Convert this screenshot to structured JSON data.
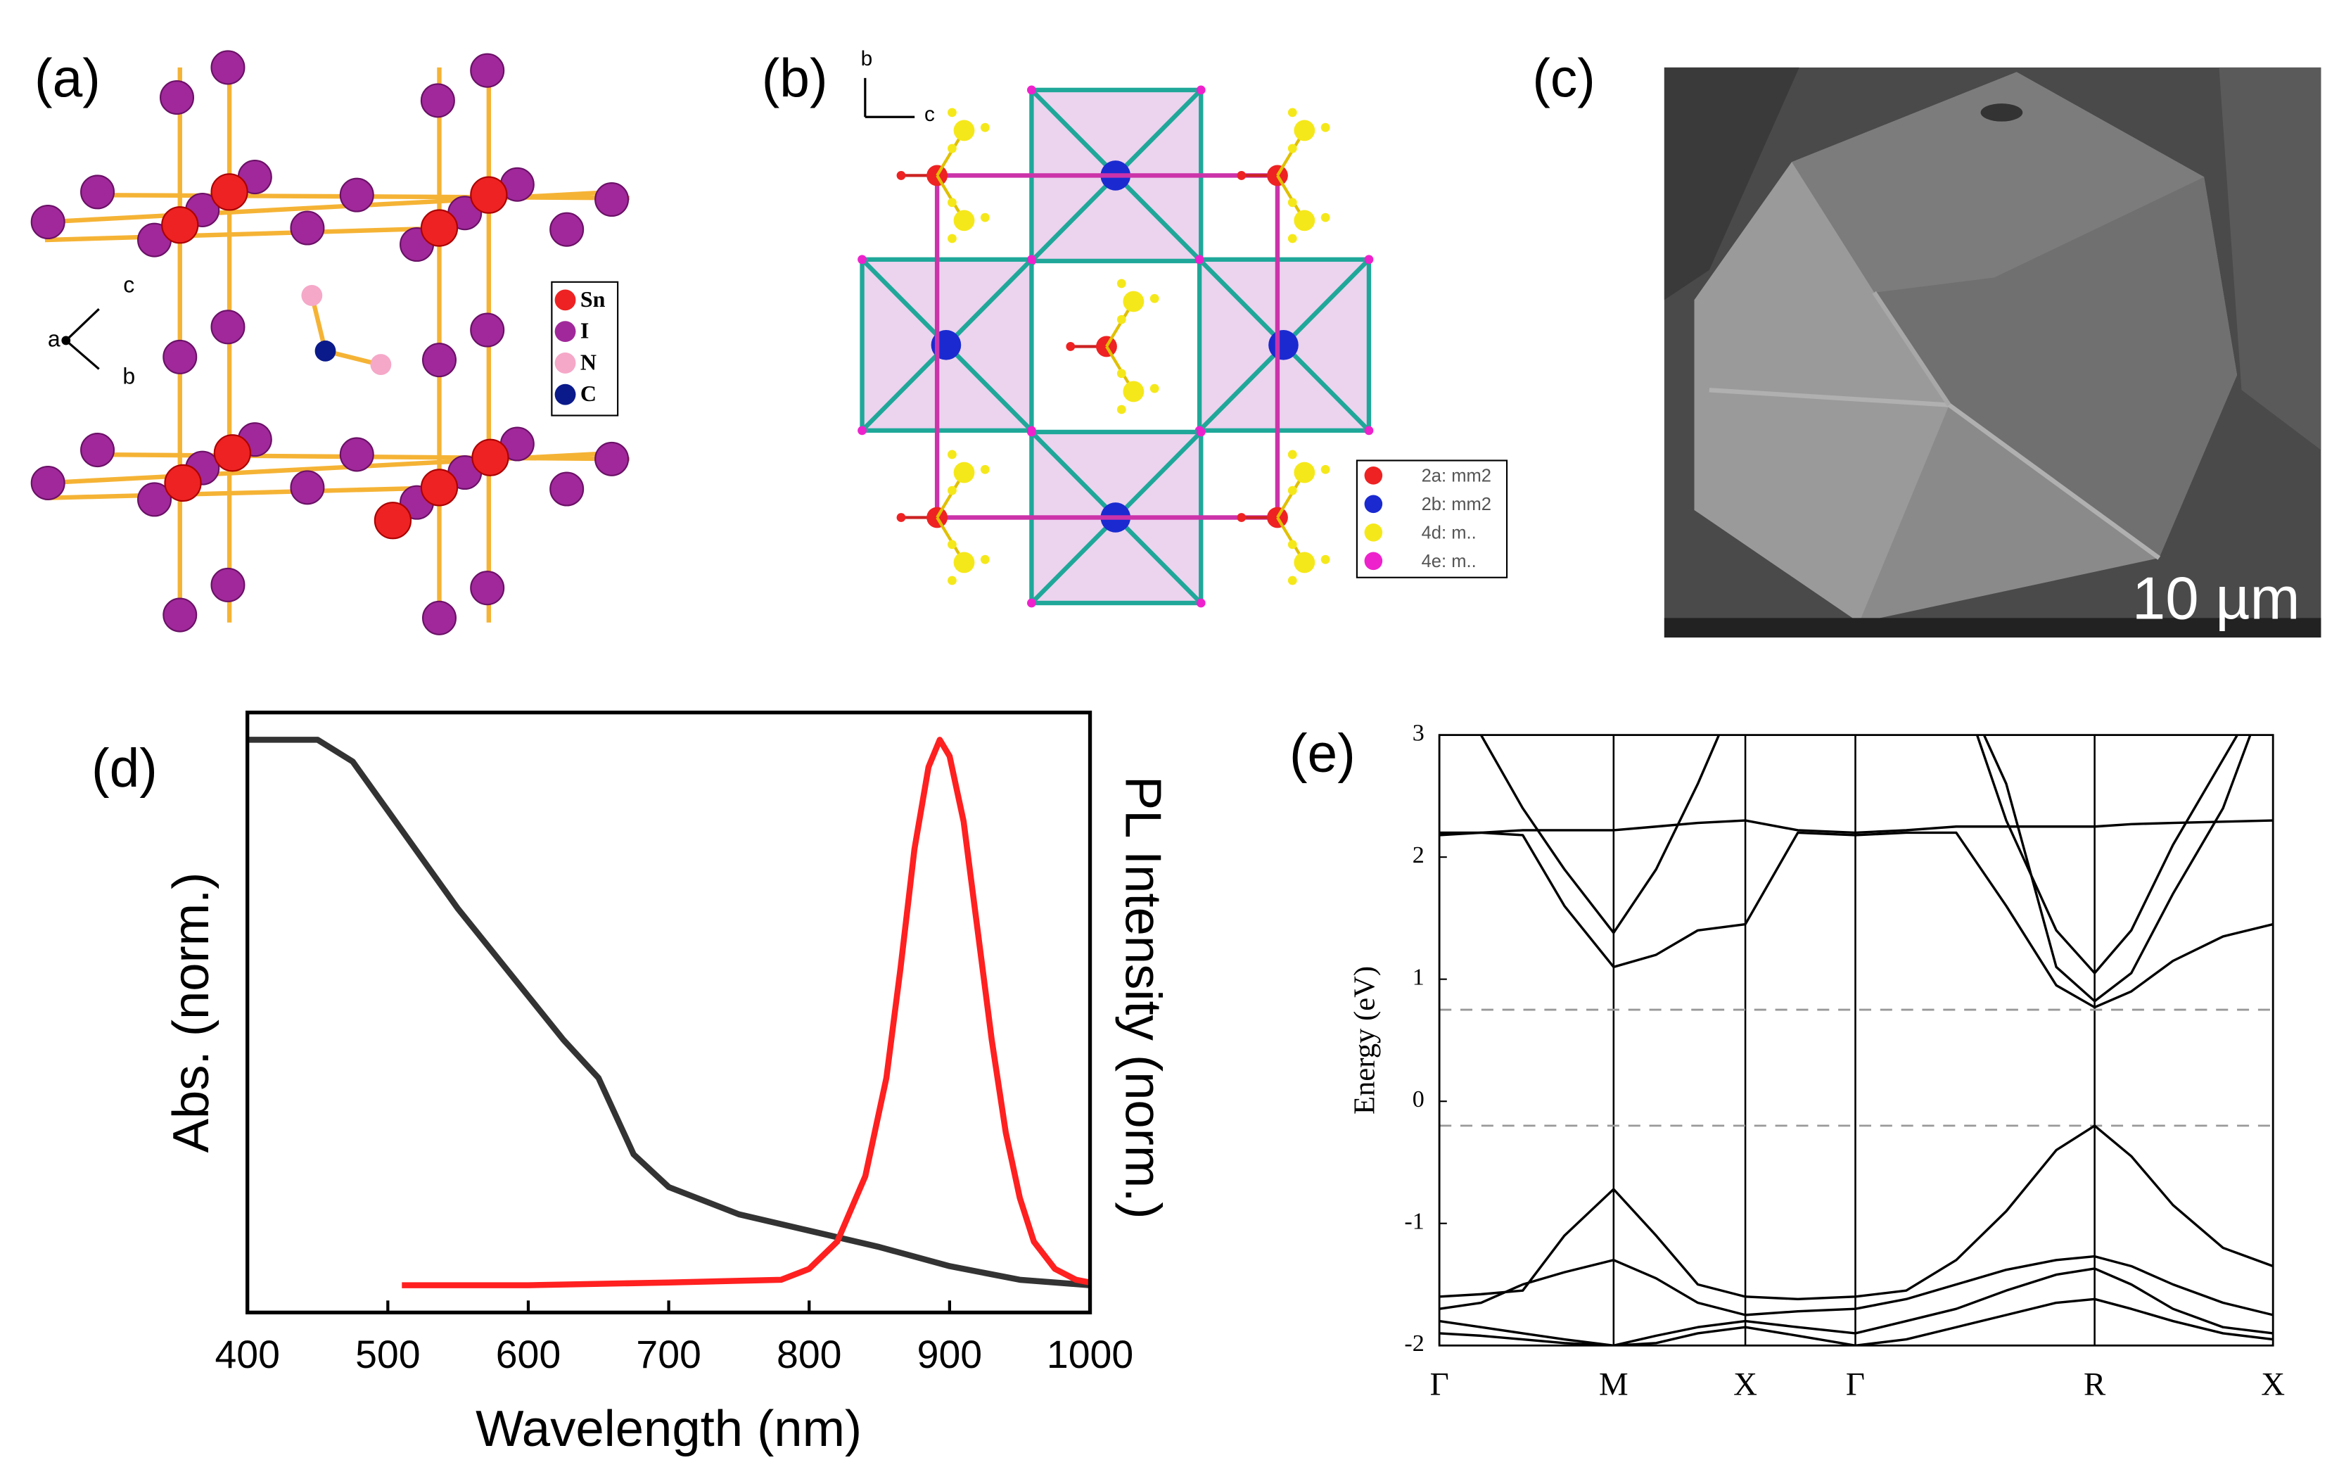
{
  "panels": [
    {
      "label": "(a)",
      "legend": [
        "Sn",
        "I",
        "N",
        "C"
      ],
      "axes": [
        "a",
        "b",
        "c"
      ]
    },
    {
      "label": "(b)",
      "legend": [
        "2a: mm2",
        "2b: mm2",
        "4d: m..",
        "4e: m.."
      ],
      "axes": [
        "b",
        "c"
      ]
    },
    {
      "label": "(c)",
      "scale_bar": "10 µm"
    },
    {
      "label": "(d)"
    },
    {
      "label": "(e)"
    }
  ],
  "chart_data": [
    {
      "type": "line",
      "xlabel": "Wavelength (nm)",
      "ylabel": "Abs. (norm.)",
      "ylabel_right": "PL Intensity (norm.)",
      "xlim": [
        400,
        1000
      ],
      "xticks": [
        400,
        500,
        600,
        700,
        800,
        900,
        1000
      ],
      "ylim": [
        -0.05,
        1.05
      ],
      "series": [
        {
          "color": "#333333",
          "x": [
            400,
            450,
            475,
            500,
            525,
            550,
            575,
            600,
            625,
            650,
            675,
            700,
            750,
            800,
            850,
            900,
            950,
            1000
          ],
          "values": [
            1,
            1,
            0.96,
            0.87,
            0.78,
            0.69,
            0.61,
            0.53,
            0.45,
            0.38,
            0.24,
            0.18,
            0.13,
            0.1,
            0.07,
            0.035,
            0.01,
            0
          ]
        },
        {
          "color": "#ff2020",
          "x": [
            510,
            600,
            700,
            780,
            800,
            820,
            840,
            855,
            865,
            875,
            885,
            893,
            900,
            910,
            920,
            930,
            940,
            950,
            960,
            975,
            990,
            1000
          ],
          "values": [
            0,
            0,
            0.005,
            0.01,
            0.03,
            0.08,
            0.2,
            0.38,
            0.58,
            0.8,
            0.95,
            1,
            0.97,
            0.85,
            0.65,
            0.45,
            0.28,
            0.16,
            0.08,
            0.03,
            0.01,
            0.005
          ]
        }
      ]
    },
    {
      "type": "line",
      "ylabel": "Energy (eV)",
      "xlim": [
        0,
        1
      ],
      "xticks": [
        {
          "value": 0,
          "label": "Γ"
        },
        {
          "value": 0.209,
          "label": "M"
        },
        {
          "value": 0.367,
          "label": "X"
        },
        {
          "value": 0.499,
          "label": "Γ"
        },
        {
          "value": 0.786,
          "label": "R"
        },
        {
          "value": 1,
          "label": "X"
        }
      ],
      "ylim": [
        -2,
        3
      ],
      "yticks": [
        -2,
        -1,
        0,
        1,
        2,
        3
      ],
      "grid_x": true,
      "reference_lines": [
        0.75,
        -0.2
      ],
      "x": [
        0,
        0.05,
        0.1,
        0.15,
        0.209,
        0.26,
        0.31,
        0.367,
        0.43,
        0.499,
        0.56,
        0.62,
        0.68,
        0.74,
        0.786,
        0.83,
        0.88,
        0.94,
        1
      ],
      "series": [
        {
          "color": "#000000",
          "values": [
            2.2,
            2.2,
            2.18,
            1.6,
            1.1,
            1.2,
            1.4,
            1.45,
            2.2,
            2.18,
            2.2,
            2.2,
            1.6,
            0.95,
            0.77,
            0.9,
            1.15,
            1.35,
            1.45
          ]
        },
        {
          "color": "#000000",
          "values": [
            3.5,
            3.0,
            2.4,
            1.9,
            1.38,
            1.9,
            2.6,
            3.5,
            3.5,
            3.5,
            3.5,
            3.5,
            2.3,
            1.4,
            1.05,
            1.4,
            2.1,
            2.8,
            3.5
          ]
        },
        {
          "color": "#000000",
          "values": [
            2.18,
            2.2,
            2.22,
            2.22,
            2.22,
            2.25,
            2.28,
            2.3,
            2.22,
            2.2,
            2.22,
            2.25,
            2.25,
            2.25,
            2.25,
            2.27,
            2.28,
            2.29,
            2.3
          ]
        },
        {
          "color": "#000000",
          "values": [
            3.5,
            3.5,
            3.5,
            3.5,
            3.5,
            3.5,
            3.5,
            3.5,
            3.5,
            3.5,
            3.5,
            3.5,
            2.6,
            1.1,
            0.82,
            1.05,
            1.7,
            2.4,
            3.5
          ]
        },
        {
          "color": "#000000",
          "values": [
            -1.6,
            -1.58,
            -1.55,
            -1.1,
            -0.72,
            -1.1,
            -1.5,
            -1.6,
            -1.62,
            -1.6,
            -1.55,
            -1.3,
            -0.9,
            -0.4,
            -0.2,
            -0.45,
            -0.85,
            -1.2,
            -1.35
          ]
        },
        {
          "color": "#000000",
          "values": [
            -1.7,
            -1.65,
            -1.5,
            -1.4,
            -1.3,
            -1.45,
            -1.65,
            -1.75,
            -1.72,
            -1.7,
            -1.62,
            -1.5,
            -1.38,
            -1.3,
            -1.27,
            -1.35,
            -1.5,
            -1.65,
            -1.75
          ]
        },
        {
          "color": "#000000",
          "values": [
            -1.8,
            -1.85,
            -1.9,
            -1.95,
            -2.0,
            -1.92,
            -1.85,
            -1.8,
            -1.85,
            -1.9,
            -1.8,
            -1.7,
            -1.55,
            -1.42,
            -1.37,
            -1.5,
            -1.7,
            -1.85,
            -1.9
          ]
        },
        {
          "color": "#000000",
          "values": [
            -1.9,
            -1.92,
            -1.95,
            -1.98,
            -2.0,
            -1.98,
            -1.9,
            -1.85,
            -1.92,
            -2.0,
            -1.95,
            -1.85,
            -1.75,
            -1.65,
            -1.62,
            -1.7,
            -1.8,
            -1.9,
            -1.95
          ]
        }
      ]
    }
  ]
}
